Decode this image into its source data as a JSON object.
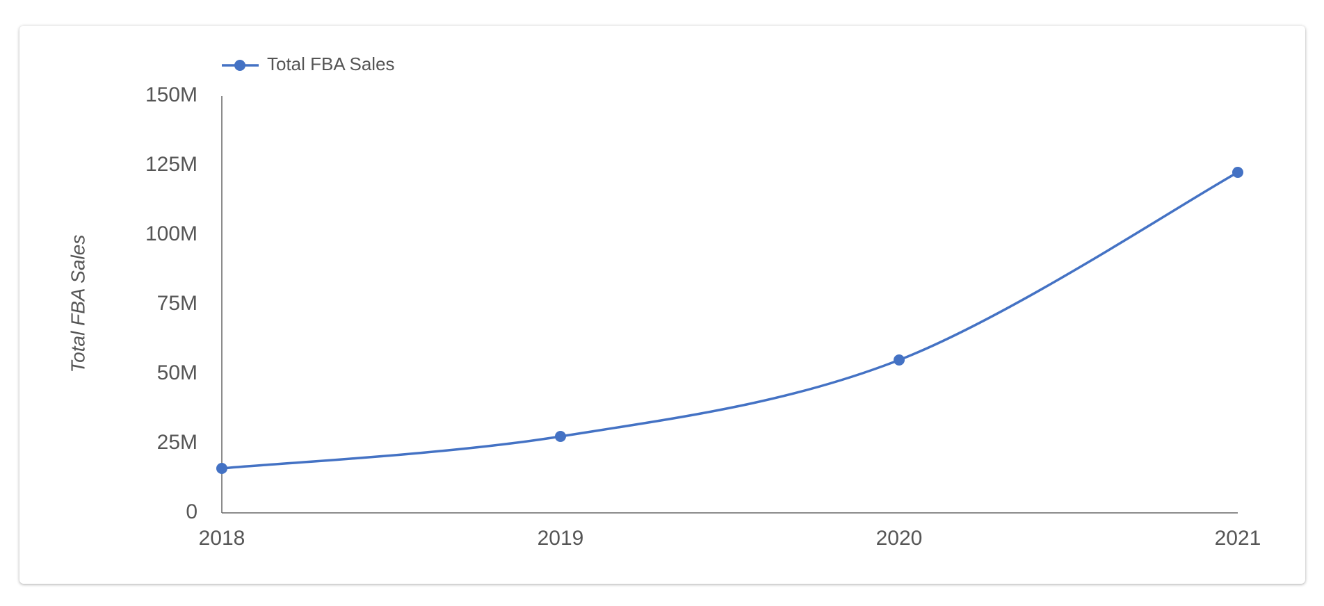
{
  "chart_data": {
    "type": "line",
    "y_axis_label": "Total FBA Sales",
    "categories": [
      "2018",
      "2019",
      "2020",
      "2021"
    ],
    "series": [
      {
        "name": "Total FBA Sales",
        "color": "#4472c4",
        "values": [
          16000000,
          27500000,
          55000000,
          122500000
        ]
      }
    ],
    "ylim": [
      0,
      150000000
    ],
    "yticks": [
      0,
      {
        "value": 25000000,
        "label": "25M"
      },
      {
        "value": 50000000,
        "label": "50M"
      },
      {
        "value": 75000000,
        "label": "75M"
      },
      {
        "value": 100000000,
        "label": "100M"
      },
      {
        "value": 125000000,
        "label": "125M"
      },
      {
        "value": 150000000,
        "label": "150M"
      }
    ],
    "grid": false,
    "legend": "top-left"
  }
}
